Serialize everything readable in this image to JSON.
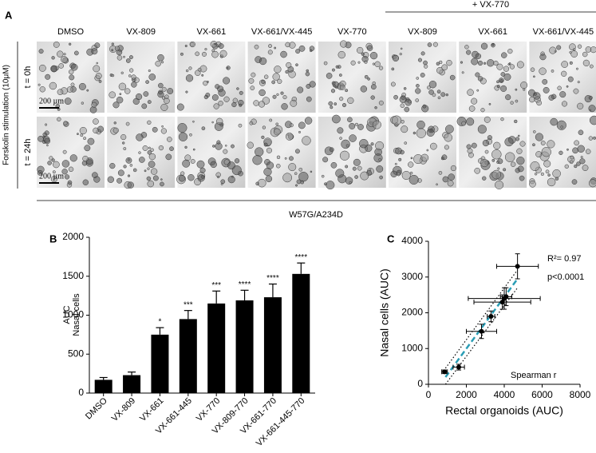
{
  "panel_a": {
    "label": "A",
    "group_label": "+ VX-770",
    "columns": [
      "DMSO",
      "VX-809",
      "VX-661",
      "VX-661/VX-445",
      "VX-770",
      "VX-809",
      "VX-661",
      "VX-661/VX-445"
    ],
    "rows": [
      "t = 0h",
      "t = 24h"
    ],
    "side_label": "Forskolin stimulation (10μM)",
    "scale_bar": "200 µm",
    "genotype": "W57G/A234D"
  },
  "chart_data": [
    {
      "type": "bar",
      "label": "B",
      "ylabel": [
        "AUC",
        "Nasal cells"
      ],
      "categories": [
        "DMSO",
        "VX-809",
        "VX-661",
        "VX-661-445",
        "VX-770",
        "VX-809-770",
        "VX-661-770",
        "VX-661-445-770"
      ],
      "values": [
        170,
        230,
        750,
        950,
        1150,
        1190,
        1230,
        1530
      ],
      "errors": [
        30,
        40,
        90,
        110,
        160,
        130,
        170,
        140
      ],
      "annotations": [
        null,
        null,
        "*",
        "***",
        "***",
        "****",
        "****",
        "****"
      ],
      "color": "#000000",
      "ylim": [
        0,
        2000
      ],
      "yticks": [
        0,
        500,
        1000,
        1500,
        2000
      ]
    },
    {
      "type": "scatter",
      "label": "C",
      "xlabel": "Rectal organoids (AUC)",
      "ylabel": "Nasal cells (AUC)",
      "x": [
        850,
        1600,
        2800,
        3300,
        3900,
        4000,
        4100,
        4700
      ],
      "y": [
        350,
        480,
        1480,
        1900,
        2300,
        2400,
        2450,
        3300
      ],
      "x_errors": [
        150,
        300,
        800,
        200,
        1500,
        1900,
        300,
        1100
      ],
      "y_errors": [
        50,
        80,
        200,
        150,
        200,
        300,
        250,
        350
      ],
      "color": "#000000",
      "fit": {
        "x": [
          900,
          4700
        ],
        "y": [
          200,
          2950
        ],
        "color": "#2a9db5"
      },
      "band": {
        "x": [
          900,
          4700
        ],
        "upper": [
          450,
          3200
        ],
        "lower": [
          0,
          2700
        ]
      },
      "xlim": [
        0,
        8000
      ],
      "xticks": [
        0,
        2000,
        4000,
        6000,
        8000
      ],
      "ylim": [
        0,
        4000
      ],
      "yticks": [
        0,
        1000,
        2000,
        3000,
        4000
      ],
      "annotations": [
        "R²= 0.97",
        "p<0.0001",
        "Spearman r"
      ]
    }
  ]
}
